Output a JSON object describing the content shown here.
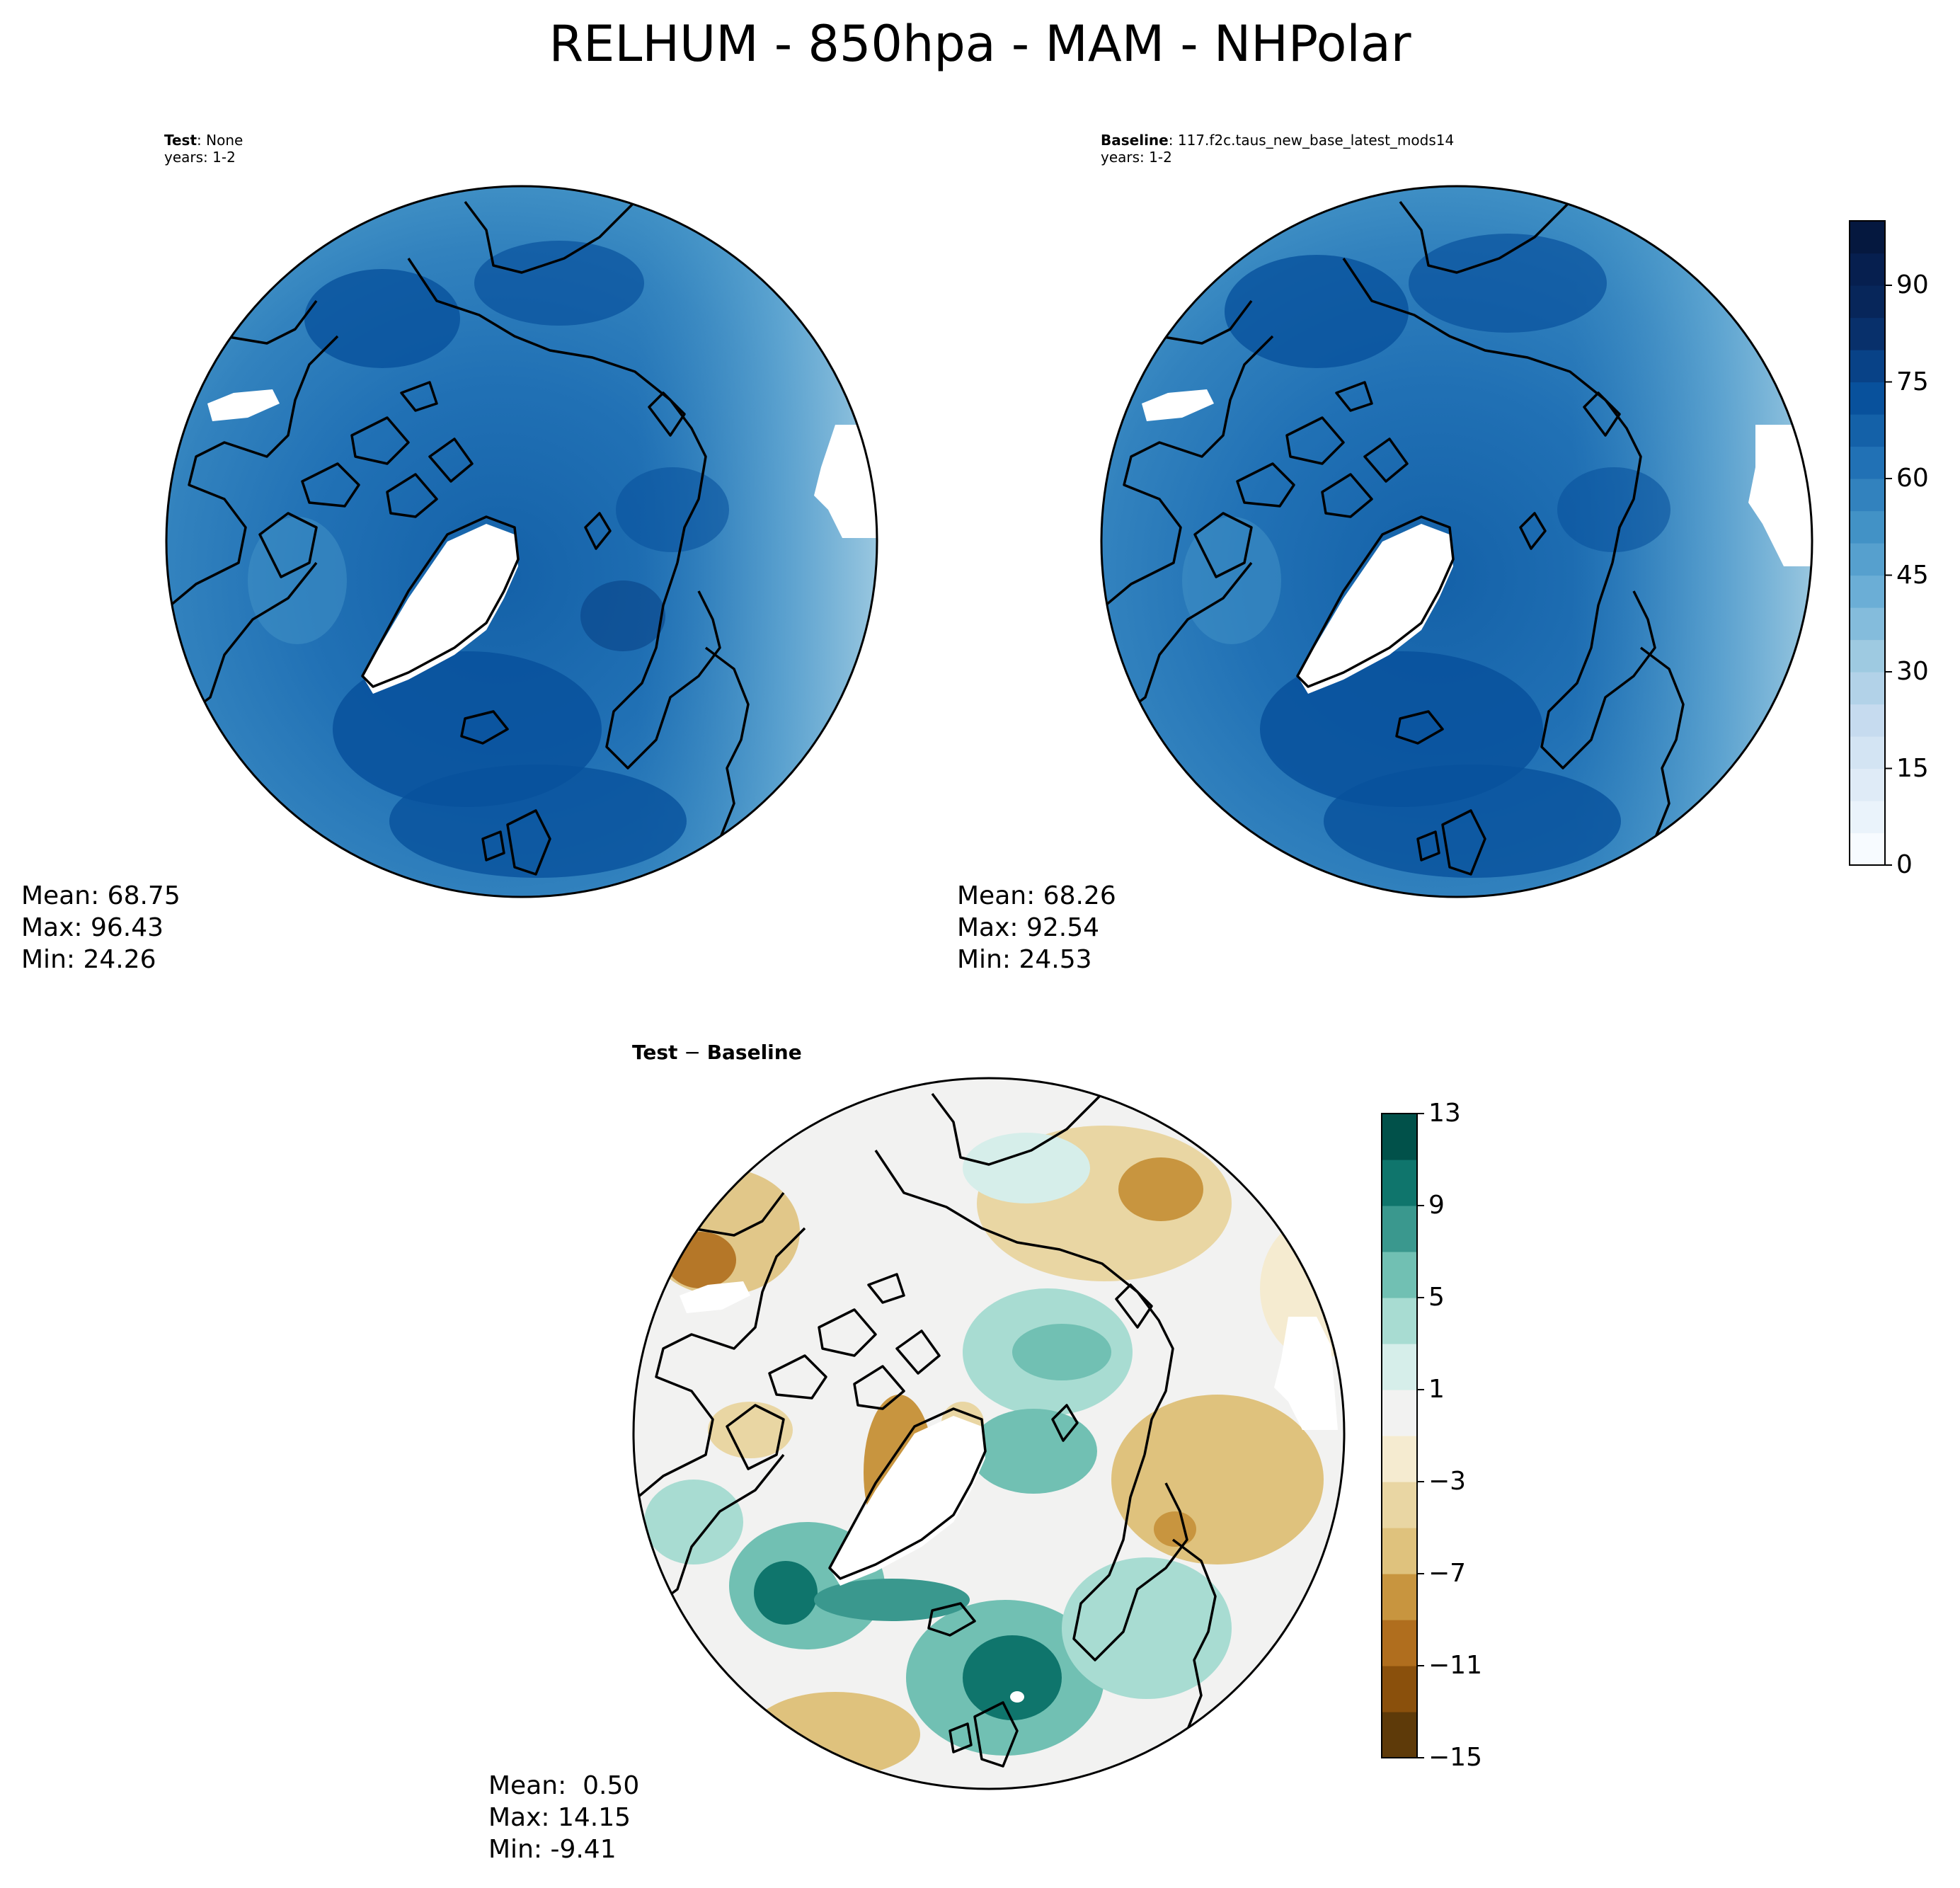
{
  "figure": {
    "title": "RELHUM - 850hpa - MAM - NHPolar"
  },
  "panels": {
    "test": {
      "name": "Test",
      "value": "None",
      "years": "years: 1-2",
      "mean": "Mean: 68.75",
      "max": "Max: 96.43",
      "min": "Min: 24.26"
    },
    "baseline": {
      "name": "Baseline",
      "value": "117.f2c.taus_new_base_latest_mods14",
      "years": "years: 1-2",
      "mean": "Mean: 68.26",
      "max": "Max: 92.54",
      "min": "Min: 24.53"
    },
    "diff": {
      "title_a": "Test",
      "title_op": " − ",
      "title_b": "Baseline",
      "mean": "Mean:  0.50",
      "max": "Max: 14.15",
      "min": "Min: -9.41"
    }
  },
  "colorbars": {
    "relhum": {
      "ticks": [
        "0",
        "15",
        "30",
        "45",
        "60",
        "75",
        "90"
      ],
      "levels": [
        0,
        5,
        10,
        15,
        20,
        25,
        30,
        35,
        40,
        45,
        50,
        55,
        60,
        65,
        70,
        75,
        80,
        85,
        90,
        95,
        100
      ],
      "colormap": "Blues",
      "colors": [
        "#f7fbff",
        "#eaf3fb",
        "#dfebf7",
        "#d3e4f3",
        "#c6dbef",
        "#b2d2e8",
        "#9ecae1",
        "#84bcdc",
        "#6baed6",
        "#56a0ce",
        "#4292c6",
        "#3282be",
        "#2171b5",
        "#1461a8",
        "#08519c",
        "#084287",
        "#08306b",
        "#07265a",
        "#061f4f",
        "#05183f"
      ]
    },
    "diff": {
      "ticks": [
        "13",
        "9",
        "5",
        "1",
        "−3",
        "−7",
        "−11",
        "−15"
      ],
      "levels": [
        -15,
        -13,
        -11,
        -9,
        -7,
        -5,
        -3,
        -1,
        1,
        3,
        5,
        7,
        9,
        11,
        13
      ],
      "colormap": "BrBG",
      "colors": [
        "#5e3a09",
        "#8a500c",
        "#b06e1e",
        "#c8953f",
        "#dfc27d",
        "#e9d6a3",
        "#f5ebd0",
        "#f2f2f1",
        "#d6eeea",
        "#a8dcd2",
        "#71c0b3",
        "#3a988e",
        "#0f756c",
        "#01514a"
      ]
    }
  },
  "chart_data": [
    {
      "type": "contour-map",
      "projection": "north polar stereographic",
      "title": "Test: None",
      "variable": "RELHUM",
      "units": "",
      "stats": {
        "mean": 68.75,
        "max": 96.43,
        "min": 24.26
      },
      "levels": [
        0,
        5,
        10,
        15,
        20,
        25,
        30,
        35,
        40,
        45,
        50,
        55,
        60,
        65,
        70,
        75,
        80,
        85,
        90,
        95,
        100
      ],
      "colormap": "Blues"
    },
    {
      "type": "contour-map",
      "projection": "north polar stereographic",
      "title": "Baseline: 117.f2c.taus_new_base_latest_mods14",
      "variable": "RELHUM",
      "stats": {
        "mean": 68.26,
        "max": 92.54,
        "min": 24.53
      },
      "levels": [
        0,
        5,
        10,
        15,
        20,
        25,
        30,
        35,
        40,
        45,
        50,
        55,
        60,
        65,
        70,
        75,
        80,
        85,
        90,
        95,
        100
      ],
      "colormap": "Blues"
    },
    {
      "type": "contour-map",
      "projection": "north polar stereographic",
      "title": "Test − Baseline",
      "stats": {
        "mean": 0.5,
        "max": 14.15,
        "min": -9.41
      },
      "levels": [
        -15,
        -13,
        -11,
        -9,
        -7,
        -5,
        -3,
        -1,
        1,
        3,
        5,
        7,
        9,
        11,
        13
      ],
      "colormap": "BrBG"
    }
  ]
}
